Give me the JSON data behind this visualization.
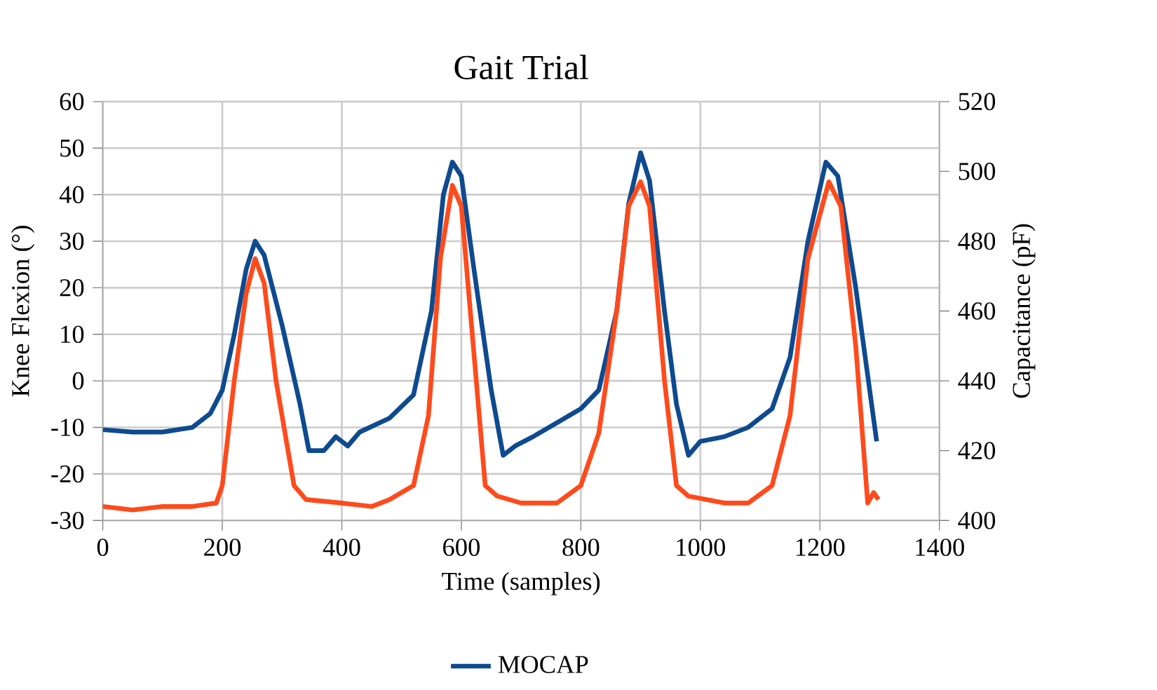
{
  "chart_data": {
    "type": "line",
    "title": "Gait Trial",
    "xlabel": "Time (samples)",
    "ylabel": "Knee Flexion (°)",
    "y2label": "Capacitance (pF)",
    "xlim": [
      0,
      1400
    ],
    "xticks": [
      0,
      200,
      400,
      600,
      800,
      1000,
      1200,
      1400
    ],
    "ylim": [
      -30,
      60
    ],
    "yticks": [
      -30,
      -20,
      -10,
      0,
      10,
      20,
      30,
      40,
      50,
      60
    ],
    "y2lim": [
      400,
      520
    ],
    "y2ticks": [
      400,
      420,
      440,
      460,
      480,
      500,
      520
    ],
    "grid": true,
    "legend": "bottom",
    "marker": "none",
    "line_style": "solid",
    "series": [
      {
        "name": "MOCAP",
        "color": "#0e4a8f",
        "x": [
          0,
          50,
          100,
          150,
          180,
          200,
          220,
          240,
          255,
          270,
          300,
          330,
          345,
          370,
          390,
          410,
          430,
          480,
          520,
          550,
          570,
          585,
          600,
          620,
          650,
          670,
          690,
          720,
          760,
          800,
          830,
          860,
          880,
          900,
          915,
          940,
          960,
          980,
          1000,
          1040,
          1080,
          1120,
          1150,
          1180,
          1210,
          1230,
          1260,
          1295
        ],
        "values": [
          -10.5,
          -11,
          -11,
          -10,
          -7,
          -2,
          10,
          24,
          30,
          27,
          12,
          -5,
          -15,
          -15,
          -12,
          -14,
          -11,
          -8,
          -3,
          15,
          40,
          47,
          44,
          25,
          -2,
          -16,
          -14,
          -12,
          -9,
          -6,
          -2,
          15,
          38,
          49,
          43,
          15,
          -5,
          -16,
          -13,
          -12,
          -10,
          -6,
          5,
          30,
          47,
          44,
          20,
          -13
        ]
      },
      {
        "color": "#ff4a1c",
        "axis": "y2",
        "x": [
          0,
          50,
          100,
          150,
          190,
          200,
          220,
          240,
          255,
          270,
          290,
          320,
          340,
          400,
          450,
          480,
          520,
          545,
          565,
          585,
          600,
          620,
          640,
          660,
          700,
          760,
          800,
          830,
          860,
          880,
          900,
          915,
          940,
          960,
          980,
          1040,
          1080,
          1120,
          1150,
          1180,
          1215,
          1235,
          1260,
          1280,
          1290,
          1298
        ],
        "values": [
          404,
          403,
          404,
          404,
          405,
          410,
          440,
          465,
          475,
          468,
          440,
          410,
          406,
          405,
          404,
          406,
          410,
          430,
          475,
          496,
          490,
          450,
          410,
          407,
          405,
          405,
          410,
          425,
          460,
          490,
          497,
          490,
          440,
          410,
          407,
          405,
          405,
          410,
          430,
          475,
          497,
          490,
          450,
          405,
          408,
          406
        ]
      }
    ]
  }
}
